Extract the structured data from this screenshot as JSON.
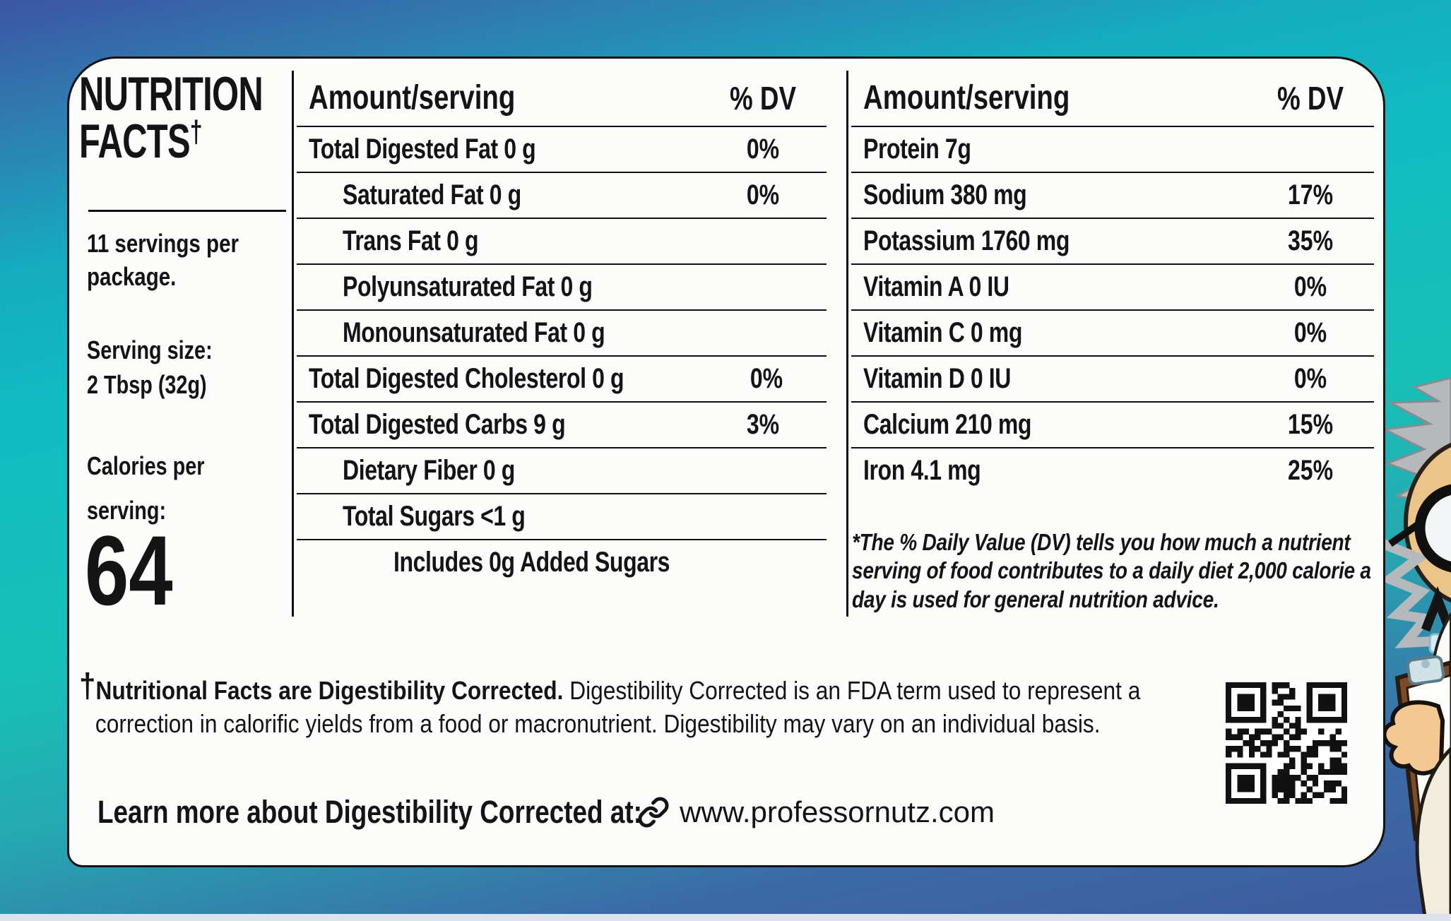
{
  "title": {
    "line1": "NUTRITION",
    "line2": "FACTS",
    "dagger": "†"
  },
  "left": {
    "servings": "11 servings per package.",
    "serving_size_label": "Serving size:",
    "serving_size_value": "2 Tbsp (32g)",
    "calories_label_line1": "Calories per",
    "calories_label_line2": "serving:",
    "calories_value": "64"
  },
  "table1": {
    "header_amount": "Amount/serving",
    "header_dv": "% DV",
    "rows": [
      {
        "label": "Total Digested Fat 0 g",
        "dv": "0%",
        "indent": 0
      },
      {
        "label": "Saturated Fat 0 g",
        "dv": "0%",
        "indent": 1
      },
      {
        "label": "Trans Fat 0 g",
        "dv": "",
        "indent": 1
      },
      {
        "label": "Polyunsaturated Fat 0 g",
        "dv": "",
        "indent": 1
      },
      {
        "label": "Monounsaturated Fat 0 g",
        "dv": "",
        "indent": 1
      },
      {
        "label": "Total Digested Cholesterol 0 g",
        "dv": "0%",
        "indent": 0
      },
      {
        "label": "Total Digested Carbs 9 g",
        "dv": "3%",
        "indent": 0
      },
      {
        "label": "Dietary Fiber 0 g",
        "dv": "",
        "indent": 1
      },
      {
        "label": "Total Sugars <1 g",
        "dv": "",
        "indent": 1
      },
      {
        "label": "Includes 0g Added Sugars",
        "dv": "",
        "indent": 2
      }
    ]
  },
  "table2": {
    "header_amount": "Amount/serving",
    "header_dv": "% DV",
    "rows": [
      {
        "label": "Protein 7g",
        "dv": "",
        "indent": 0
      },
      {
        "label": "Sodium 380 mg",
        "dv": "17%",
        "indent": 0
      },
      {
        "label": "Potassium 1760 mg",
        "dv": "35%",
        "indent": 0
      },
      {
        "label": "Vitamin A 0 IU",
        "dv": "0%",
        "indent": 0
      },
      {
        "label": "Vitamin C 0 mg",
        "dv": "0%",
        "indent": 0
      },
      {
        "label": "Vitamin D 0 IU",
        "dv": "0%",
        "indent": 0
      },
      {
        "label": "Calcium 210 mg",
        "dv": "15%",
        "indent": 0
      },
      {
        "label": "Iron 4.1 mg",
        "dv": "25%",
        "indent": 0
      }
    ]
  },
  "dv_footnote": "*The % Daily Value (DV) tells you how much a nutrient serving of food contributes to a daily diet 2,000 calorie a day is used for general nutrition advice.",
  "footnote": {
    "dagger": "†",
    "bold": "Nutritional Facts are Digestibility Corrected.",
    "rest": "  Digestibility Corrected is an FDA term used to represent a correction in calorific yields from a food or macronutrient. Digestibility may vary on an individual basis."
  },
  "learn_more": {
    "label": "Learn more about Digestibility Corrected at:",
    "url": "www.professornutz.com",
    "icon": "link-icon"
  },
  "qr": {
    "name": "qr-code"
  },
  "colors": {
    "background_blue": "#3c55a5",
    "background_teal": "#10bcc2",
    "card": "#fcfcfa",
    "ink": "#141414"
  }
}
